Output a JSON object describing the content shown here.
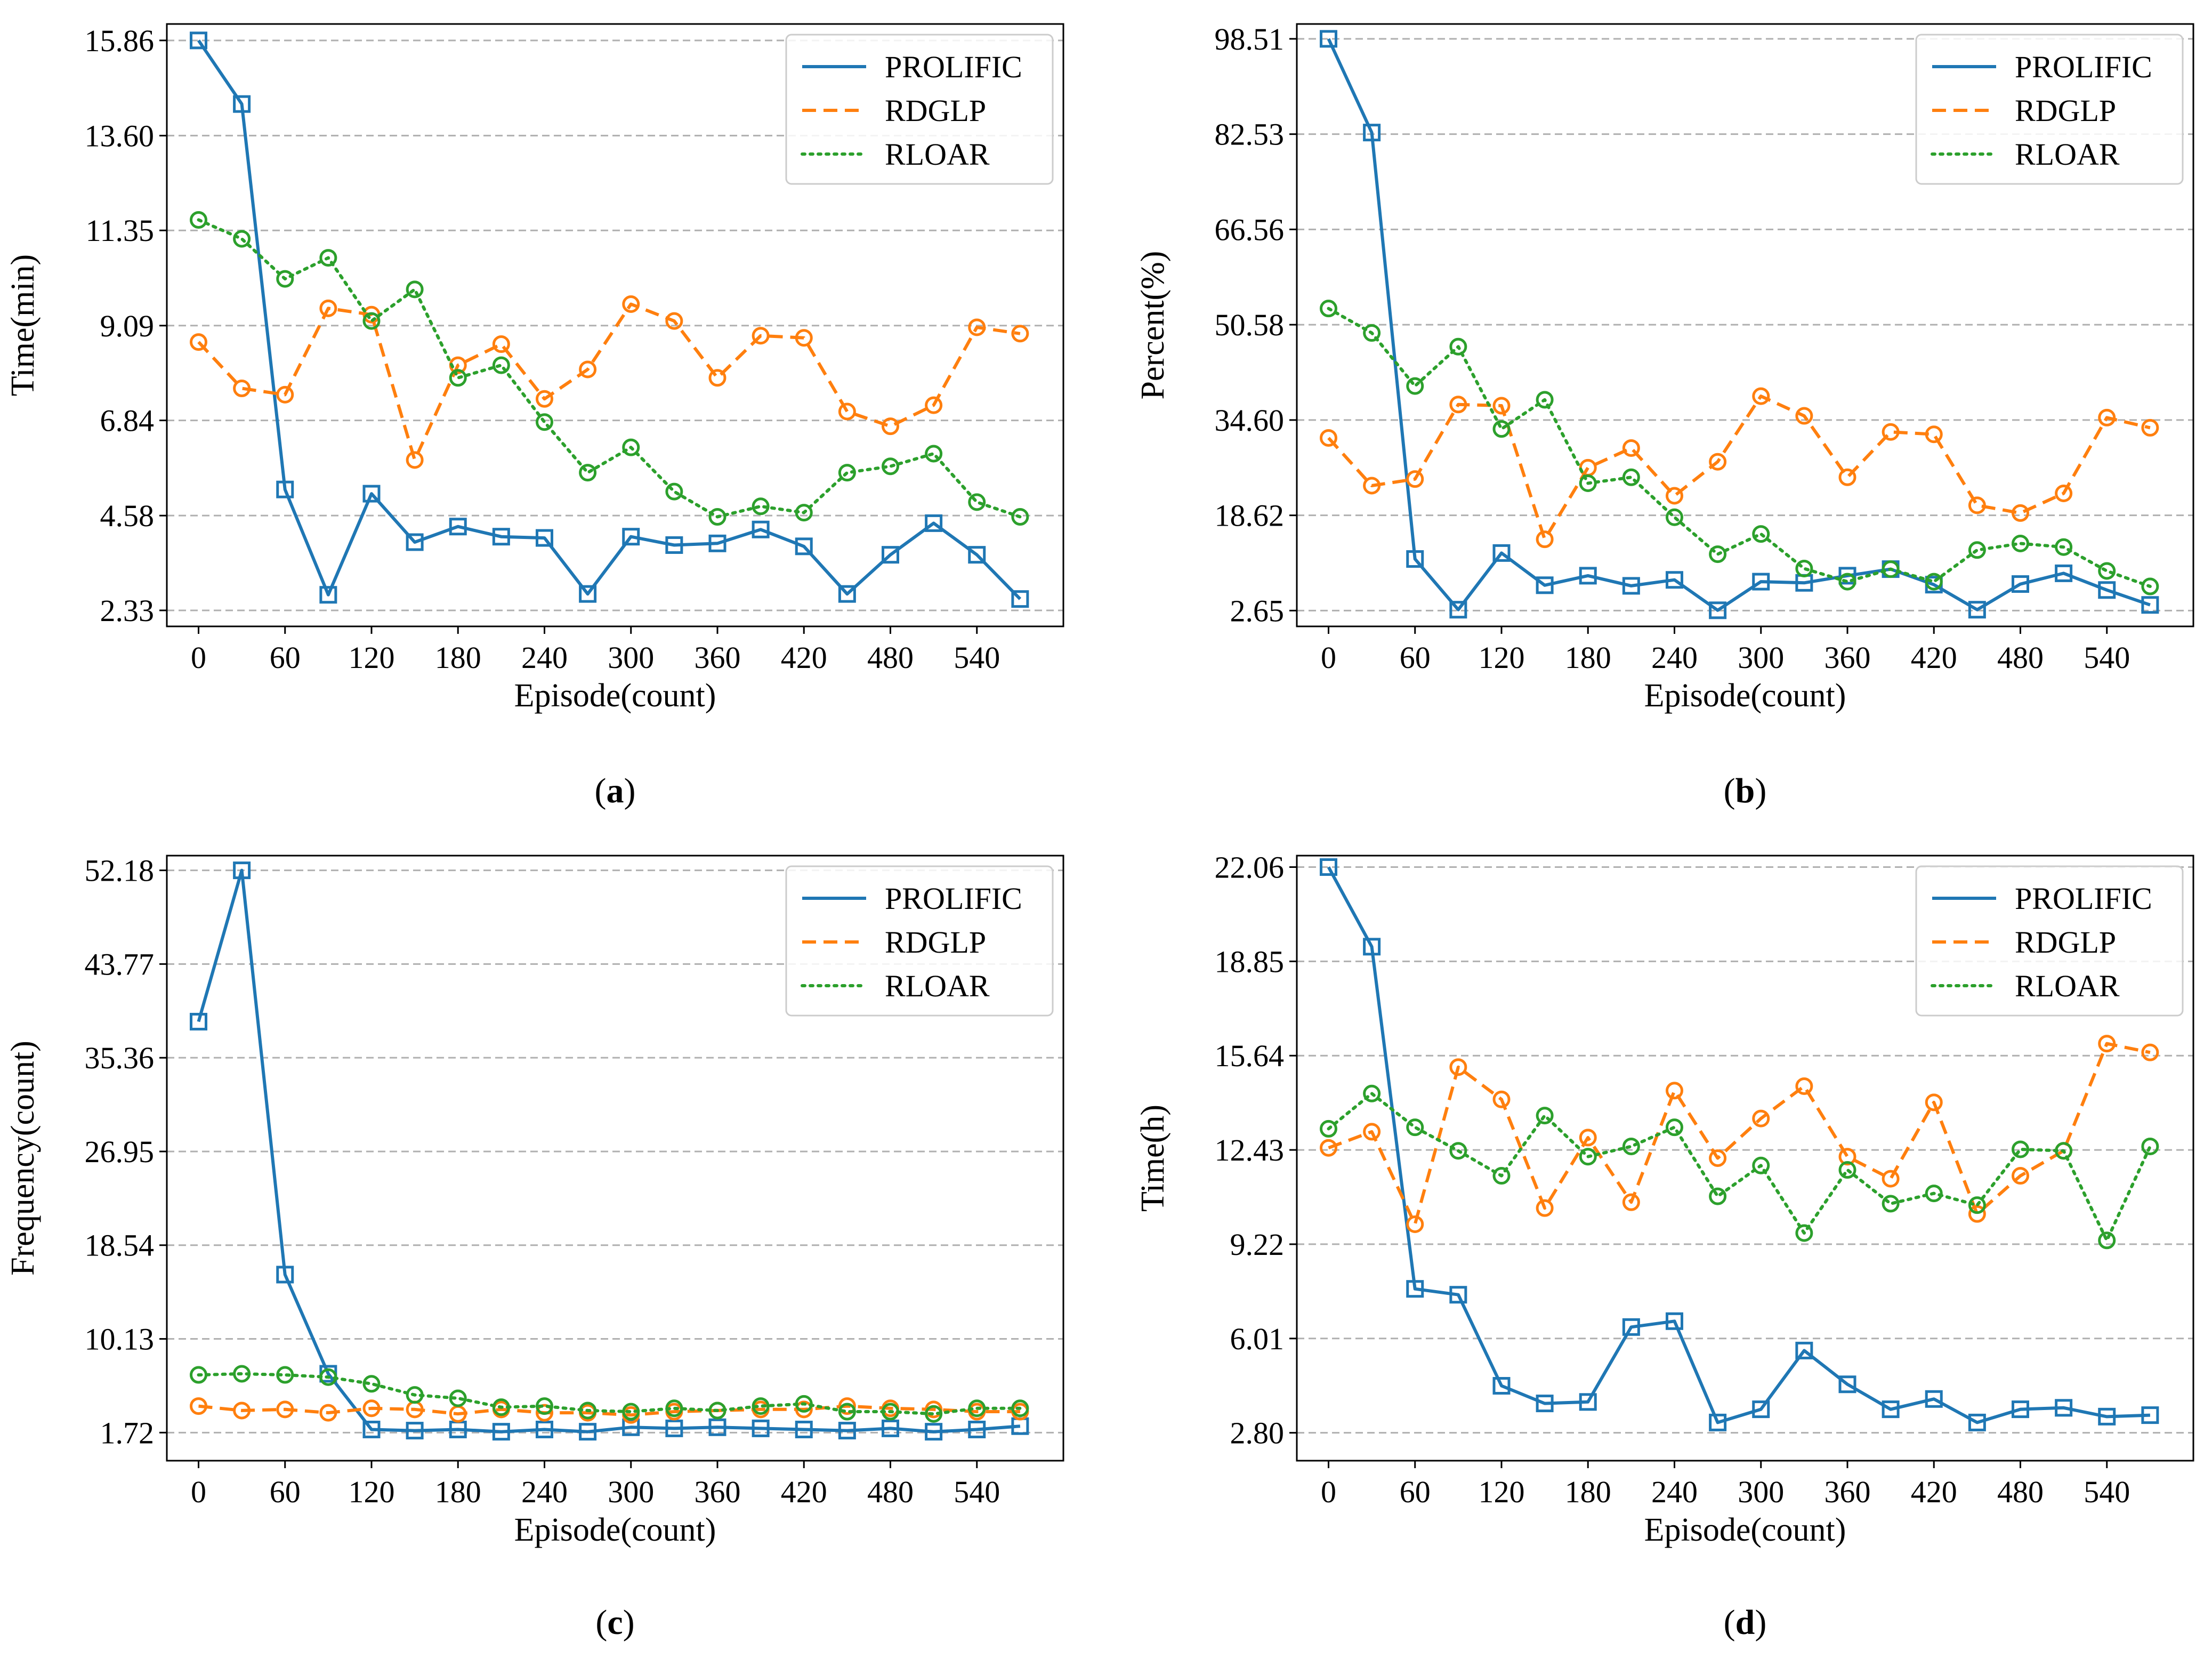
{
  "colors": {
    "PROLIFIC": "#1f77b4",
    "RDGLP": "#ff7f0e",
    "RLOAR": "#2ca02c"
  },
  "chart_data": [
    {
      "type": "line",
      "caption_letter": "a",
      "xlabel": "Episode(count)",
      "ylabel": "Time(min)",
      "xlim": [
        -22,
        600
      ],
      "ylim": [
        1.95,
        16.25
      ],
      "xticks": [
        0,
        60,
        120,
        180,
        240,
        300,
        360,
        420,
        480,
        540
      ],
      "yticks": [
        2.33,
        4.58,
        6.84,
        9.09,
        11.35,
        13.6,
        15.86
      ],
      "ytick_labels": [
        "2.33",
        "4.58",
        "6.84",
        "9.09",
        "11.35",
        "13.60",
        "15.86"
      ],
      "legend": [
        "PROLIFIC",
        "RDGLP",
        "RLOAR"
      ],
      "legend_position": "top-right",
      "grid": "y",
      "x": [
        0,
        30,
        60,
        90,
        120,
        150,
        180,
        210,
        240,
        270,
        300,
        330,
        360,
        390,
        420,
        450,
        480,
        510,
        540,
        570
      ],
      "series": [
        {
          "name": "PROLIFIC",
          "style": "solid",
          "marker": "square",
          "values": [
            15.86,
            14.35,
            5.2,
            2.7,
            5.1,
            3.95,
            4.32,
            4.08,
            4.05,
            2.72,
            4.08,
            3.88,
            3.92,
            4.25,
            3.85,
            2.72,
            3.65,
            4.4,
            3.65,
            2.6
          ]
        },
        {
          "name": "RDGLP",
          "style": "dashed",
          "marker": "circle",
          "values": [
            8.7,
            7.6,
            7.45,
            9.5,
            9.35,
            5.9,
            8.15,
            8.65,
            7.35,
            8.05,
            9.6,
            9.2,
            7.85,
            8.85,
            8.8,
            7.05,
            6.7,
            7.2,
            9.05,
            8.9
          ]
        },
        {
          "name": "RLOAR",
          "style": "dotted",
          "marker": "circle",
          "values": [
            11.6,
            11.15,
            10.2,
            10.7,
            9.2,
            9.95,
            7.85,
            8.15,
            6.8,
            5.6,
            6.2,
            5.15,
            4.55,
            4.8,
            4.65,
            5.6,
            5.75,
            6.05,
            4.9,
            4.55
          ]
        }
      ]
    },
    {
      "type": "line",
      "caption_letter": "b",
      "xlabel": "Episode(count)",
      "ylabel": "Percent(%)",
      "xlim": [
        -22,
        600
      ],
      "ylim": [
        0.0,
        101.0
      ],
      "xticks": [
        0,
        60,
        120,
        180,
        240,
        300,
        360,
        420,
        480,
        540
      ],
      "yticks": [
        2.65,
        18.62,
        34.6,
        50.58,
        66.56,
        82.53,
        98.51
      ],
      "ytick_labels": [
        "2.65",
        "18.62",
        "34.60",
        "50.58",
        "66.56",
        "82.53",
        "98.51"
      ],
      "legend": [
        "PROLIFIC",
        "RDGLP",
        "RLOAR"
      ],
      "legend_position": "top-right",
      "grid": "y",
      "x": [
        0,
        30,
        60,
        90,
        120,
        150,
        180,
        210,
        240,
        270,
        300,
        330,
        360,
        390,
        420,
        450,
        480,
        510,
        540,
        570
      ],
      "series": [
        {
          "name": "PROLIFIC",
          "style": "solid",
          "marker": "square",
          "values": [
            98.51,
            82.8,
            11.3,
            2.8,
            12.3,
            6.9,
            8.5,
            6.8,
            7.8,
            2.7,
            7.5,
            7.3,
            8.5,
            9.6,
            7.0,
            2.8,
            7.1,
            8.9,
            6.1,
            3.6
          ]
        },
        {
          "name": "RDGLP",
          "style": "dashed",
          "marker": "circle",
          "values": [
            31.6,
            23.6,
            24.7,
            37.2,
            37.0,
            14.6,
            26.6,
            29.9,
            21.9,
            27.6,
            38.6,
            35.3,
            25.0,
            32.6,
            32.2,
            20.3,
            19.0,
            22.3,
            35.0,
            33.3
          ]
        },
        {
          "name": "RLOAR",
          "style": "dotted",
          "marker": "circle",
          "values": [
            53.3,
            49.2,
            40.3,
            46.9,
            33.1,
            38.0,
            24.0,
            25.0,
            18.3,
            12.1,
            15.5,
            9.7,
            7.5,
            9.6,
            7.5,
            12.8,
            13.9,
            13.3,
            9.3,
            6.7
          ]
        }
      ]
    },
    {
      "type": "line",
      "caption_letter": "c",
      "xlabel": "Episode(count)",
      "ylabel": "Frequency(count)",
      "xlim": [
        -22,
        600
      ],
      "ylim": [
        -0.8,
        53.5
      ],
      "xticks": [
        0,
        60,
        120,
        180,
        240,
        300,
        360,
        420,
        480,
        540
      ],
      "yticks": [
        1.72,
        10.13,
        18.54,
        26.95,
        35.36,
        43.77,
        52.18
      ],
      "ytick_labels": [
        "1.72",
        "10.13",
        "18.54",
        "26.95",
        "35.36",
        "43.77",
        "52.18"
      ],
      "legend": [
        "PROLIFIC",
        "RDGLP",
        "RLOAR"
      ],
      "legend_position": "top-right",
      "grid": "y",
      "x": [
        0,
        30,
        60,
        90,
        120,
        150,
        180,
        210,
        240,
        270,
        300,
        330,
        360,
        390,
        420,
        450,
        480,
        510,
        540,
        570
      ],
      "series": [
        {
          "name": "PROLIFIC",
          "style": "solid",
          "marker": "square",
          "values": [
            38.6,
            52.18,
            15.9,
            7.0,
            2.0,
            1.9,
            2.0,
            1.8,
            2.0,
            1.8,
            2.2,
            2.1,
            2.2,
            2.1,
            2.0,
            1.9,
            2.1,
            1.8,
            2.0,
            2.3
          ]
        },
        {
          "name": "RDGLP",
          "style": "dashed",
          "marker": "circle",
          "values": [
            4.1,
            3.7,
            3.8,
            3.5,
            3.9,
            3.8,
            3.4,
            3.8,
            3.5,
            3.5,
            3.3,
            3.6,
            3.7,
            3.8,
            3.8,
            4.1,
            3.9,
            3.8,
            3.6,
            3.6
          ]
        },
        {
          "name": "RLOAR",
          "style": "dotted",
          "marker": "circle",
          "values": [
            6.9,
            7.0,
            6.9,
            6.7,
            6.1,
            5.1,
            4.8,
            4.0,
            4.1,
            3.7,
            3.6,
            3.9,
            3.7,
            4.1,
            4.3,
            3.6,
            3.6,
            3.4,
            3.9,
            3.9
          ]
        }
      ]
    },
    {
      "type": "line",
      "caption_letter": "d",
      "xlabel": "Episode(count)",
      "ylabel": "Time(h)",
      "xlim": [
        -22,
        600
      ],
      "ylim": [
        1.85,
        22.45
      ],
      "xticks": [
        0,
        60,
        120,
        180,
        240,
        300,
        360,
        420,
        480,
        540
      ],
      "yticks": [
        2.8,
        6.01,
        9.22,
        12.43,
        15.64,
        18.85,
        22.06
      ],
      "ytick_labels": [
        "2.80",
        "6.01",
        "9.22",
        "12.43",
        "15.64",
        "18.85",
        "22.06"
      ],
      "legend": [
        "PROLIFIC",
        "RDGLP",
        "RLOAR"
      ],
      "legend_position": "top-right",
      "grid": "y",
      "x": [
        0,
        30,
        60,
        90,
        120,
        150,
        180,
        210,
        240,
        270,
        300,
        330,
        360,
        390,
        420,
        450,
        480,
        510,
        540,
        570
      ],
      "series": [
        {
          "name": "PROLIFIC",
          "style": "solid",
          "marker": "square",
          "values": [
            22.06,
            19.35,
            7.7,
            7.5,
            4.4,
            3.8,
            3.85,
            6.4,
            6.6,
            3.15,
            3.6,
            5.6,
            4.45,
            3.6,
            3.95,
            3.15,
            3.6,
            3.65,
            3.35,
            3.4
          ]
        },
        {
          "name": "RDGLP",
          "style": "dashed",
          "marker": "circle",
          "values": [
            12.5,
            13.05,
            9.9,
            15.25,
            14.15,
            10.45,
            12.85,
            10.65,
            14.45,
            12.15,
            13.5,
            14.6,
            12.2,
            11.45,
            14.05,
            10.25,
            11.55,
            12.4,
            16.05,
            15.75
          ]
        },
        {
          "name": "RLOAR",
          "style": "dotted",
          "marker": "circle",
          "values": [
            13.15,
            14.35,
            13.2,
            12.4,
            11.55,
            13.6,
            12.2,
            12.55,
            13.2,
            10.85,
            11.9,
            9.6,
            11.75,
            10.6,
            10.95,
            10.55,
            12.45,
            12.4,
            9.35,
            12.55
          ]
        }
      ]
    }
  ]
}
